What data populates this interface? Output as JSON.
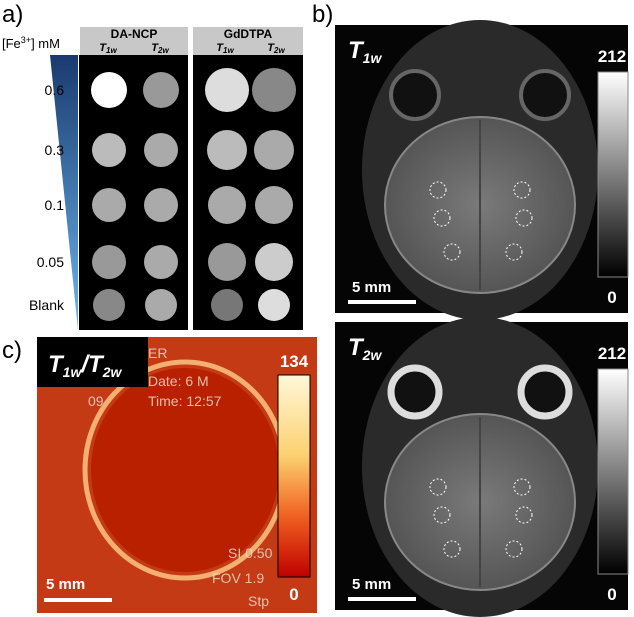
{
  "panel_a": {
    "label": "a)",
    "axis_label": {
      "text": "[Fe",
      "sup": "3+",
      "end": "] mM"
    },
    "groups": [
      {
        "title": "DA-NCP",
        "columns": [
          {
            "base": "T",
            "sub": "1w"
          },
          {
            "base": "T",
            "sub": "2w"
          }
        ]
      },
      {
        "title": "GdDTPA",
        "columns": [
          {
            "base": "T",
            "sub": "1w"
          },
          {
            "base": "T",
            "sub": "2w"
          }
        ]
      }
    ],
    "rows": [
      "0.6",
      "0.3",
      "0.1",
      "0.05",
      "Blank"
    ]
  },
  "panel_b": {
    "label": "b)",
    "images": [
      {
        "title": {
          "base": "T",
          "sub": "1w"
        },
        "colorbar_max": "212",
        "colorbar_min": "0",
        "scale_bar": "5 mm"
      },
      {
        "title": {
          "base": "T",
          "sub": "2w"
        },
        "colorbar_max": "212",
        "colorbar_min": "0",
        "scale_bar": "5 mm"
      }
    ]
  },
  "panel_c": {
    "label": "c)",
    "title": {
      "a": "T",
      "a_sub": "1w",
      "slash": "/",
      "b": "T",
      "b_sub": "2w"
    },
    "colorbar_max": "134",
    "colorbar_min": "0",
    "scale_bar": "5 mm",
    "overlay_text": [
      "ER",
      "Date: 6 M",
      "Time: 12:57",
      "09",
      "SI 0.50",
      "FOV 1.9",
      "Stp"
    ]
  }
}
